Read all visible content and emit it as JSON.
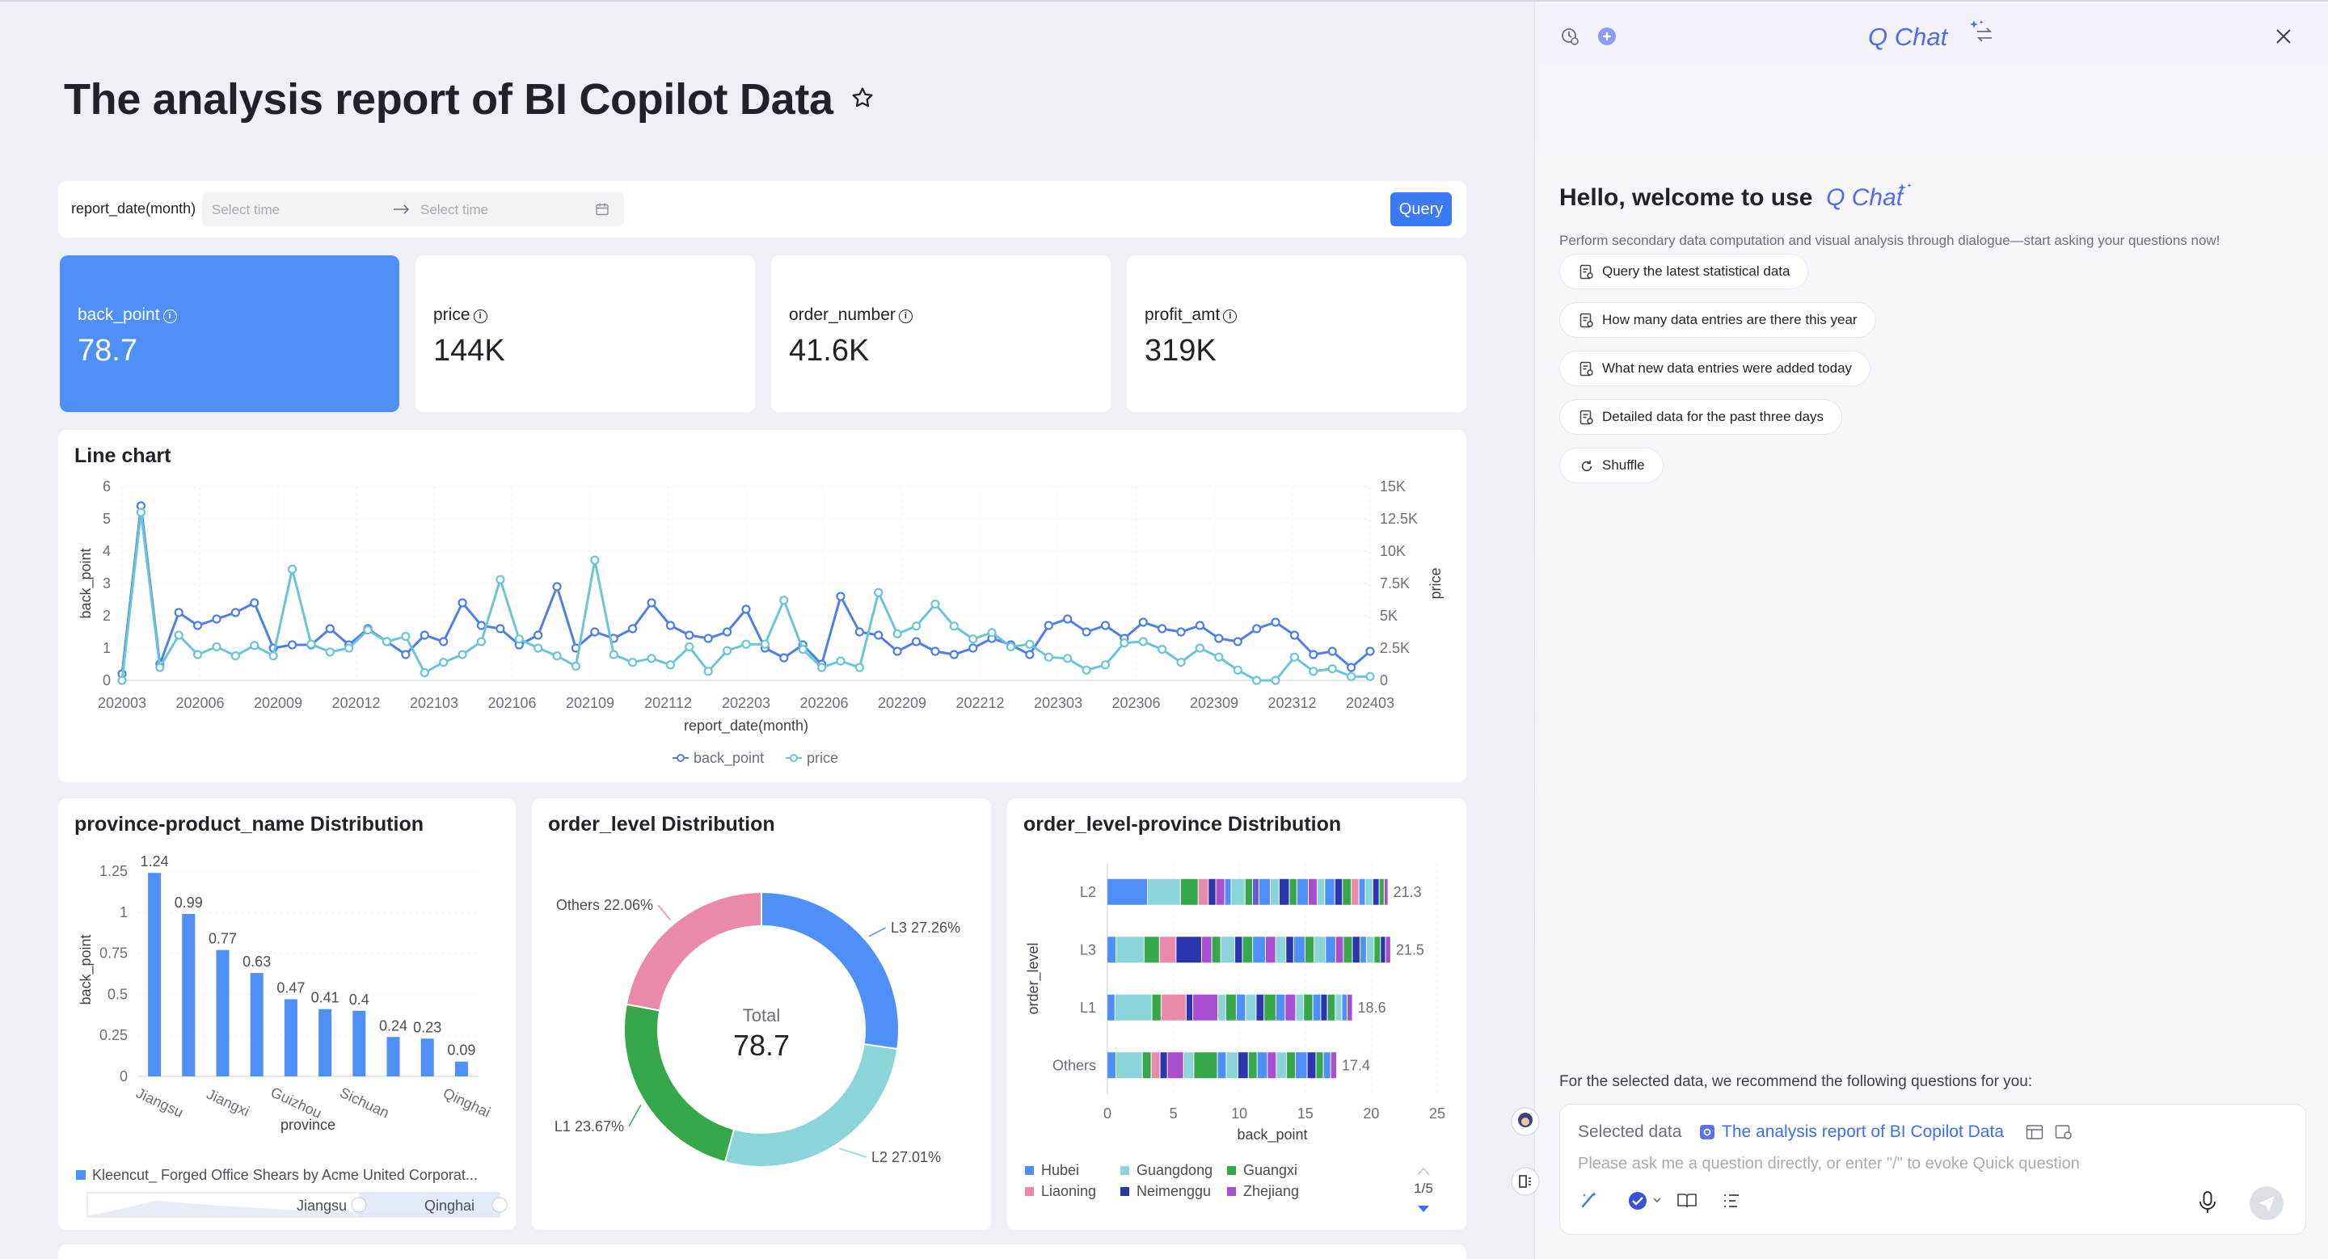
{
  "dashboard": {
    "title": "The analysis report of BI Copilot Data",
    "filter": {
      "label": "report_date(month)",
      "start_placeholder": "Select time",
      "end_placeholder": "Select time",
      "query_label": "Query"
    },
    "kpis": [
      {
        "label": "back_point",
        "value": "78.7"
      },
      {
        "label": "price",
        "value": "144K"
      },
      {
        "label": "order_number",
        "value": "41.6K"
      },
      {
        "label": "profit_amt",
        "value": "319K"
      }
    ],
    "line_chart_title": "Line chart",
    "bar_chart_title": "province-product_name Distribution",
    "donut_chart_title": "order_level Distribution",
    "stack_chart_title": "order_level-province Distribution"
  },
  "chart_data": [
    {
      "type": "line",
      "title": "Line chart",
      "xlabel": "report_date(month)",
      "ylabel": "back_point",
      "y2label": "price",
      "x_ticks": [
        "202003",
        "202006",
        "202009",
        "202012",
        "202103",
        "202106",
        "202109",
        "202112",
        "202203",
        "202206",
        "202209",
        "202212",
        "202303",
        "202306",
        "202309",
        "202312",
        "202403"
      ],
      "y_ticks": [
        "0",
        "1",
        "2",
        "3",
        "4",
        "5",
        "6"
      ],
      "y2_ticks": [
        "0",
        "2.5K",
        "5K",
        "7.5K",
        "10K",
        "12.5K",
        "15K"
      ],
      "ylim": [
        0,
        6
      ],
      "y2lim": [
        0,
        15000
      ],
      "series": [
        {
          "name": "back_point",
          "axis": "left",
          "color": "#4e7fe6",
          "values": [
            0.2,
            5.4,
            0.5,
            2.1,
            1.7,
            1.9,
            2.1,
            2.4,
            1.0,
            1.1,
            1.1,
            1.6,
            1.1,
            1.6,
            1.2,
            0.8,
            1.4,
            1.2,
            2.4,
            1.7,
            1.6,
            1.1,
            1.4,
            2.9,
            1.0,
            1.5,
            1.3,
            1.6,
            2.4,
            1.7,
            1.4,
            1.3,
            1.5,
            2.2,
            1.0,
            0.7,
            1.1,
            0.5,
            2.6,
            1.5,
            1.4,
            0.9,
            1.2,
            0.9,
            0.8,
            1.0,
            1.3,
            1.1,
            0.8,
            1.7,
            1.9,
            1.5,
            1.7,
            1.3,
            1.8,
            1.6,
            1.5,
            1.7,
            1.3,
            1.2,
            1.6,
            1.8,
            1.4,
            0.8,
            0.9,
            0.4,
            0.9
          ]
        },
        {
          "name": "price",
          "axis": "right",
          "color": "#6bc4d8",
          "values": [
            0,
            13000,
            1000,
            3500,
            2000,
            2600,
            1900,
            2700,
            1900,
            8600,
            2800,
            2200,
            2500,
            3900,
            3000,
            3400,
            600,
            1400,
            2000,
            3000,
            7800,
            3200,
            2500,
            1900,
            1100,
            9300,
            2000,
            1400,
            1700,
            1200,
            2600,
            700,
            2300,
            2800,
            2800,
            6200,
            2400,
            1000,
            1500,
            1000,
            6800,
            3600,
            4200,
            5900,
            4200,
            3200,
            3700,
            2600,
            2800,
            1800,
            1700,
            800,
            1200,
            2900,
            3000,
            2400,
            1400,
            2500,
            1800,
            800,
            0,
            0,
            1800,
            700,
            900,
            300,
            300
          ]
        }
      ],
      "legend": [
        "back_point",
        "price"
      ],
      "legend_position": "bottom"
    },
    {
      "type": "bar",
      "title": "province-product_name Distribution",
      "xlabel": "province",
      "ylabel": "back_point",
      "categories": [
        "Jiangsu",
        "",
        "Jiangxi",
        "",
        "Guizhou",
        "",
        "Sichuan",
        "",
        "",
        "Qinghai"
      ],
      "values": [
        1.24,
        0.99,
        0.77,
        0.63,
        0.47,
        0.41,
        0.4,
        0.24,
        0.23,
        0.09
      ],
      "value_labels": [
        "1.24",
        "0.99",
        "0.77",
        "0.63",
        "0.47",
        "0.41",
        "0.4",
        "0.24",
        "0.23",
        "0.09"
      ],
      "y_ticks": [
        "0",
        "0.25",
        "0.5",
        "0.75",
        "1",
        "1.25"
      ],
      "ylim": [
        0,
        1.3
      ],
      "color": "#4e8ff8",
      "legend": [
        "Kleencut_ Forged Office Shears by Acme United Corporat..."
      ],
      "slider_labels": [
        "Jiangsu",
        "Qinghai"
      ]
    },
    {
      "type": "pie",
      "title": "order_level Distribution",
      "center_label": "Total",
      "center_value": "78.7",
      "slices": [
        {
          "name": "L3",
          "value": 27.26,
          "label": "L3 27.26%",
          "color": "#4e8ff8"
        },
        {
          "name": "L2",
          "value": 27.01,
          "label": "L2 27.01%",
          "color": "#8ad4da"
        },
        {
          "name": "L1",
          "value": 23.67,
          "label": "L1 23.67%",
          "color": "#37a84a"
        },
        {
          "name": "Others",
          "value": 22.06,
          "label": "Others 22.06%",
          "color": "#e98aaa"
        }
      ]
    },
    {
      "type": "bar",
      "orientation": "horizontal",
      "stacked": true,
      "title": "order_level-province Distribution",
      "xlabel": "back_point",
      "ylabel": "order_level",
      "categories": [
        "L2",
        "L3",
        "L1",
        "Others"
      ],
      "totals": [
        21.3,
        21.5,
        18.6,
        17.4
      ],
      "total_labels": [
        "21.3",
        "21.5",
        "18.6",
        "17.4"
      ],
      "x_ticks": [
        "0",
        "5",
        "10",
        "15",
        "20",
        "25"
      ],
      "xlim": [
        0,
        25
      ],
      "legend": [
        {
          "name": "Hubei",
          "color": "#4e8ff8"
        },
        {
          "name": "Guangdong",
          "color": "#8ad4da"
        },
        {
          "name": "Guangxi",
          "color": "#37a84a"
        },
        {
          "name": "Liaoning",
          "color": "#e98aaa"
        },
        {
          "name": "Neimenggu",
          "color": "#2b35b0"
        },
        {
          "name": "Zhejiang",
          "color": "#a94ed1"
        }
      ],
      "legend_page": "1/5",
      "segments": {
        "L2": [
          [
            3.2,
            "#4e8ff8"
          ],
          [
            2.6,
            "#8ad4da"
          ],
          [
            1.4,
            "#37a84a"
          ],
          [
            0.8,
            "#e98aaa"
          ],
          [
            0.6,
            "#2b35b0"
          ],
          [
            0.7,
            "#a94ed1"
          ],
          [
            0.5,
            "#4e8ff8"
          ],
          [
            1.1,
            "#8ad4da"
          ],
          [
            0.6,
            "#37a84a"
          ],
          [
            0.5,
            "#6a55d8"
          ],
          [
            0.9,
            "#4e8ff8"
          ],
          [
            0.7,
            "#8ad4da"
          ],
          [
            0.8,
            "#2b35b0"
          ],
          [
            0.6,
            "#37a84a"
          ],
          [
            0.9,
            "#4e8ff8"
          ],
          [
            0.7,
            "#a94ed1"
          ],
          [
            0.6,
            "#8ad4da"
          ],
          [
            0.8,
            "#4e8ff8"
          ],
          [
            0.6,
            "#2b35b0"
          ],
          [
            0.7,
            "#37a84a"
          ],
          [
            0.6,
            "#e98aaa"
          ],
          [
            0.5,
            "#4e8ff8"
          ],
          [
            0.6,
            "#8ad4da"
          ],
          [
            0.5,
            "#2b35b0"
          ],
          [
            0.4,
            "#37a84a"
          ],
          [
            0.3,
            "#a94ed1"
          ]
        ],
        "L3": [
          [
            0.7,
            "#4e8ff8"
          ],
          [
            2.2,
            "#8ad4da"
          ],
          [
            1.2,
            "#37a84a"
          ],
          [
            1.3,
            "#e98aaa"
          ],
          [
            2.0,
            "#2b35b0"
          ],
          [
            0.8,
            "#a94ed1"
          ],
          [
            0.7,
            "#37a84a"
          ],
          [
            1.1,
            "#8ad4da"
          ],
          [
            0.6,
            "#2b35b0"
          ],
          [
            0.8,
            "#37a84a"
          ],
          [
            1.0,
            "#4e8ff8"
          ],
          [
            0.8,
            "#a94ed1"
          ],
          [
            0.8,
            "#8ad4da"
          ],
          [
            0.6,
            "#2b35b0"
          ],
          [
            0.9,
            "#4e8ff8"
          ],
          [
            0.7,
            "#37a84a"
          ],
          [
            0.9,
            "#8ad4da"
          ],
          [
            0.8,
            "#4e8ff8"
          ],
          [
            0.6,
            "#a94ed1"
          ],
          [
            0.7,
            "#37a84a"
          ],
          [
            0.6,
            "#2b35b0"
          ],
          [
            0.5,
            "#4e8ff8"
          ],
          [
            0.6,
            "#8ad4da"
          ],
          [
            0.5,
            "#37a84a"
          ],
          [
            0.4,
            "#2b35b0"
          ],
          [
            0.4,
            "#a94ed1"
          ]
        ],
        "L1": [
          [
            0.6,
            "#4e8ff8"
          ],
          [
            2.8,
            "#8ad4da"
          ],
          [
            0.7,
            "#37a84a"
          ],
          [
            1.9,
            "#e98aaa"
          ],
          [
            0.5,
            "#2b35b0"
          ],
          [
            1.9,
            "#a94ed1"
          ],
          [
            0.6,
            "#8ad4da"
          ],
          [
            0.8,
            "#37a84a"
          ],
          [
            0.7,
            "#4e8ff8"
          ],
          [
            0.8,
            "#8ad4da"
          ],
          [
            0.6,
            "#2b35b0"
          ],
          [
            0.9,
            "#37a84a"
          ],
          [
            0.7,
            "#4e8ff8"
          ],
          [
            0.8,
            "#a94ed1"
          ],
          [
            0.6,
            "#8ad4da"
          ],
          [
            0.7,
            "#37a84a"
          ],
          [
            0.6,
            "#4e8ff8"
          ],
          [
            0.5,
            "#2b35b0"
          ],
          [
            0.6,
            "#37a84a"
          ],
          [
            0.5,
            "#8ad4da"
          ],
          [
            0.4,
            "#4e8ff8"
          ],
          [
            0.4,
            "#a94ed1"
          ]
        ],
        "Others": [
          [
            0.6,
            "#4e8ff8"
          ],
          [
            1.8,
            "#8ad4da"
          ],
          [
            0.6,
            "#37a84a"
          ],
          [
            0.6,
            "#e98aaa"
          ],
          [
            0.5,
            "#2b35b0"
          ],
          [
            1.1,
            "#a94ed1"
          ],
          [
            0.7,
            "#8ad4da"
          ],
          [
            1.6,
            "#37a84a"
          ],
          [
            0.6,
            "#4e8ff8"
          ],
          [
            0.8,
            "#8ad4da"
          ],
          [
            0.7,
            "#2b35b0"
          ],
          [
            0.6,
            "#37a84a"
          ],
          [
            0.7,
            "#4e8ff8"
          ],
          [
            0.6,
            "#a94ed1"
          ],
          [
            0.7,
            "#8ad4da"
          ],
          [
            0.6,
            "#37a84a"
          ],
          [
            0.8,
            "#4e8ff8"
          ],
          [
            0.6,
            "#2b35b0"
          ],
          [
            0.5,
            "#37a84a"
          ],
          [
            0.5,
            "#4e8ff8"
          ],
          [
            0.4,
            "#a94ed1"
          ]
        ]
      }
    }
  ],
  "chat": {
    "brand": "Q Chat",
    "greeting": "Hello, welcome to use",
    "subtitle": "Perform secondary data computation and visual analysis through dialogue—start asking your questions now!",
    "suggestions": [
      "Query the latest statistical data",
      "How many data entries are there this year",
      "What new data entries were added today",
      "Detailed data for the past three days"
    ],
    "shuffle_label": "Shuffle",
    "recommend_text": "For the selected data, we recommend the following questions for you:",
    "selected_data_label": "Selected data",
    "selected_data_value": "The analysis report of BI Copilot Data",
    "input_placeholder": "Please ask me a question directly, or enter \"/\" to evoke Quick question"
  },
  "colors": {
    "accent": "#3b7af5",
    "kpi_active": "#4e8ff8",
    "brand": "#4e6cf0"
  }
}
